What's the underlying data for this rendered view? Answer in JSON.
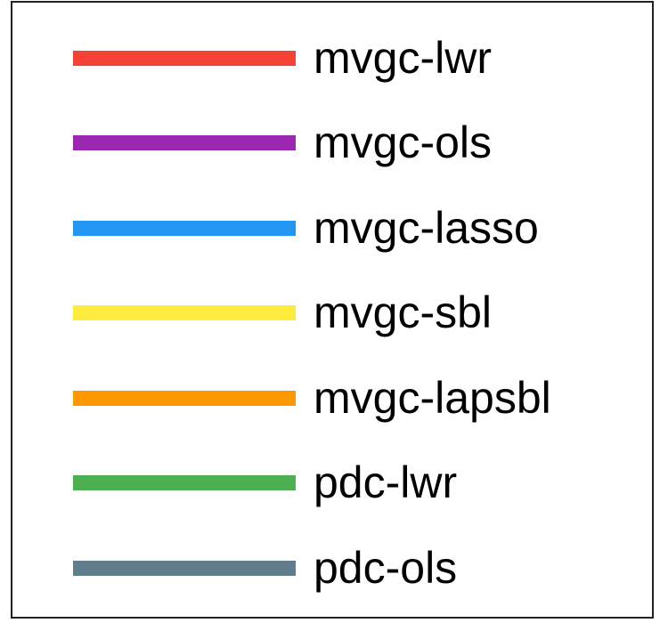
{
  "chart_data": {
    "type": "line",
    "legend_placement": "center",
    "series": [
      {
        "name": "mvgc-lwr",
        "color": "#f44336"
      },
      {
        "name": "mvgc-ols",
        "color": "#9c27b0"
      },
      {
        "name": "mvgc-lasso",
        "color": "#2196f3"
      },
      {
        "name": "mvgc-sbl",
        "color": "#ffeb3b"
      },
      {
        "name": "mvgc-lapsbl",
        "color": "#ff9800"
      },
      {
        "name": "pdc-lwr",
        "color": "#4caf50"
      },
      {
        "name": "pdc-ols",
        "color": "#607d8b"
      }
    ]
  }
}
